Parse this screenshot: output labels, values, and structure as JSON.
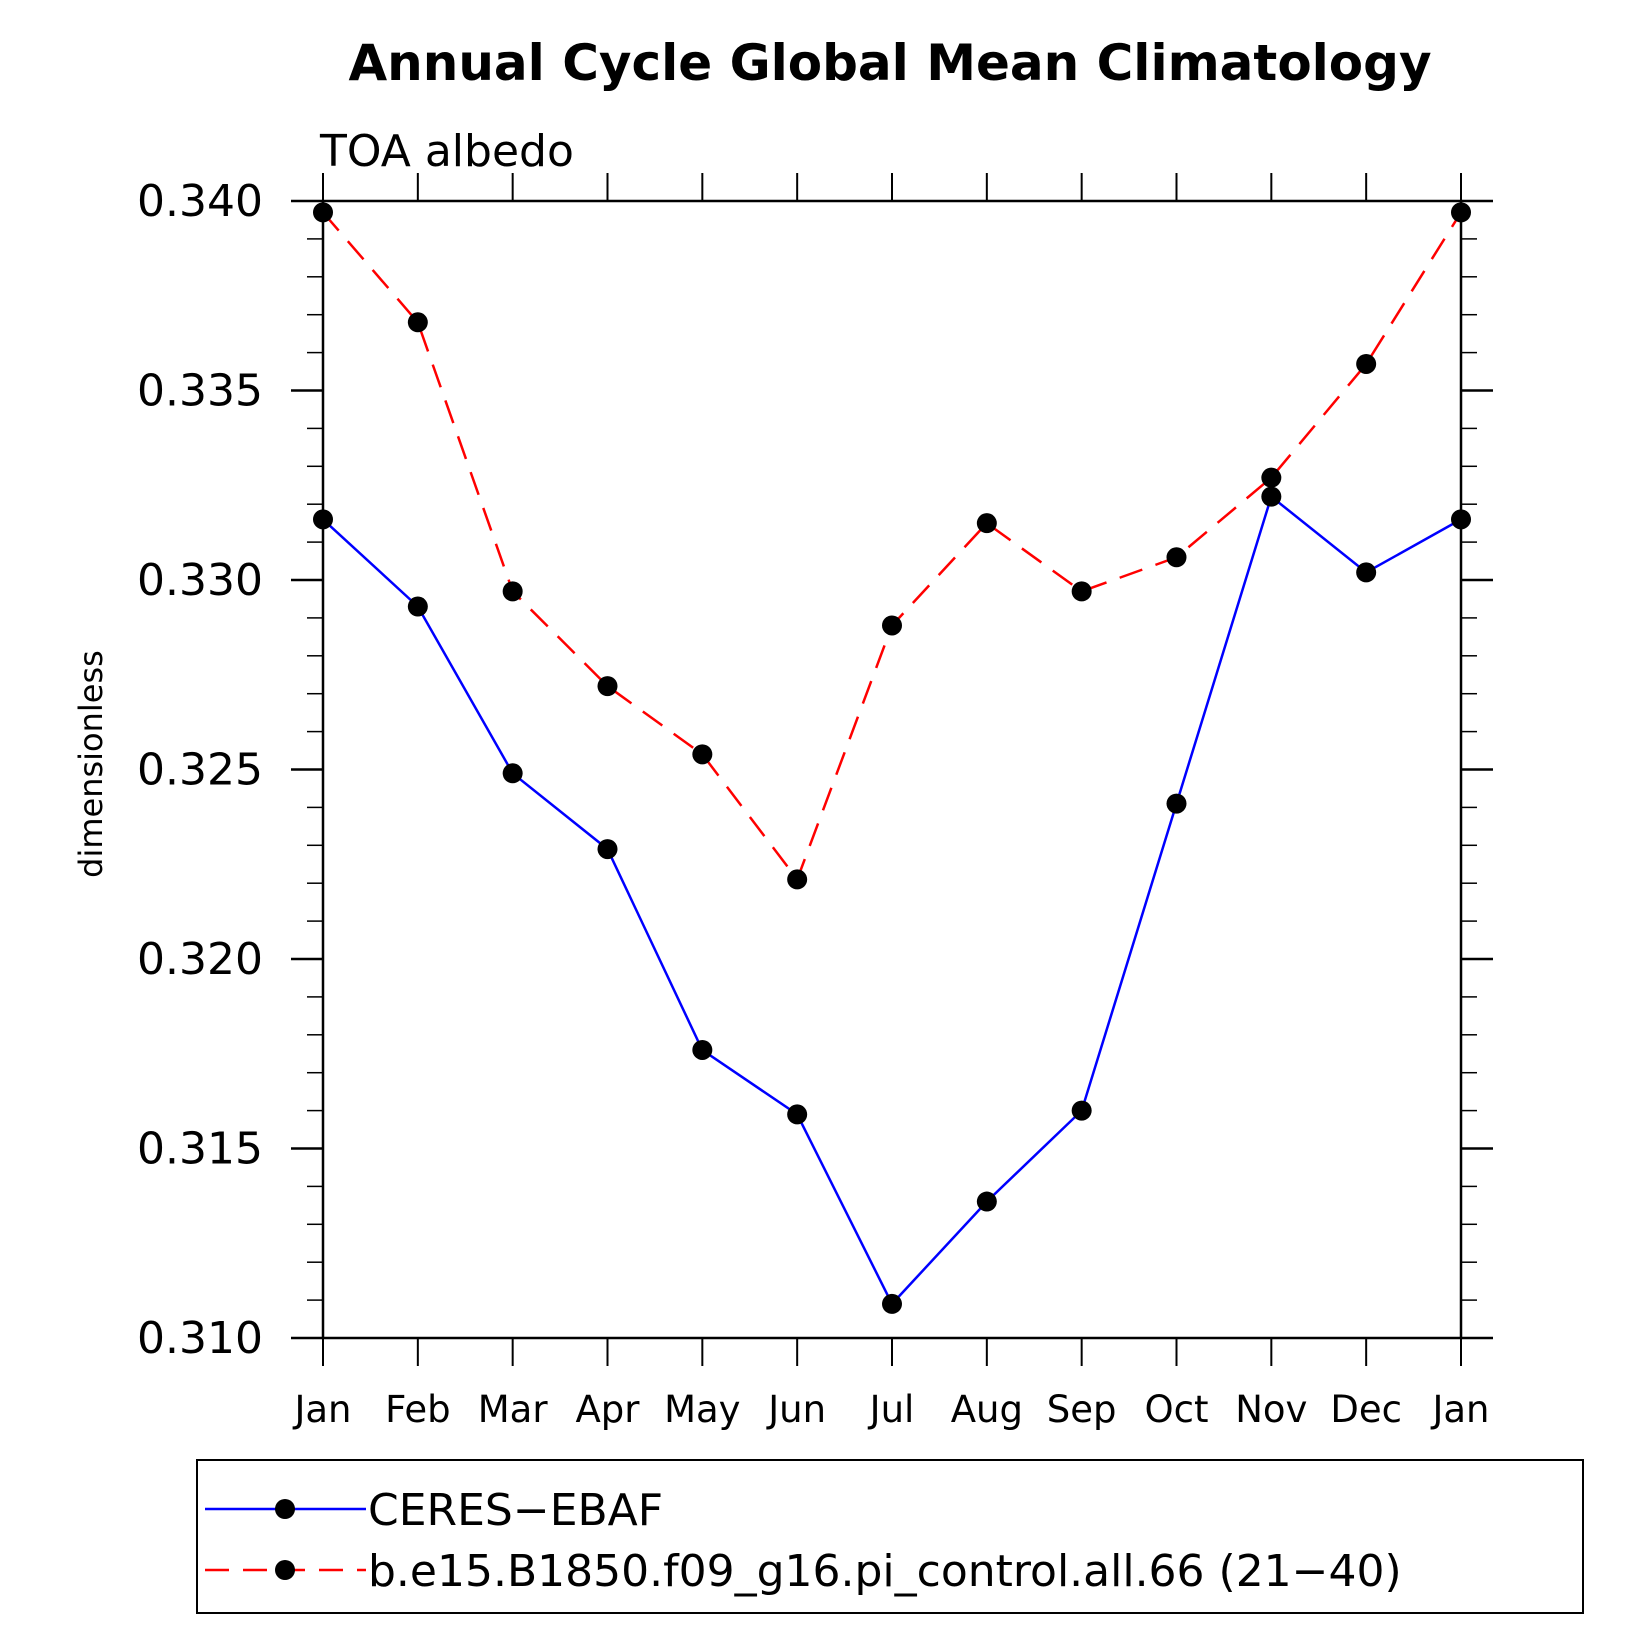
{
  "chart_data": {
    "type": "line",
    "title": "Annual Cycle Global Mean Climatology",
    "subtitle": "TOA albedo",
    "xlabel": "",
    "ylabel": "dimensionless",
    "categories": [
      "Jan",
      "Feb",
      "Mar",
      "Apr",
      "May",
      "Jun",
      "Jul",
      "Aug",
      "Sep",
      "Oct",
      "Nov",
      "Dec",
      "Jan"
    ],
    "ylim": [
      0.31,
      0.34
    ],
    "yticks": [
      "0.310",
      "0.315",
      "0.320",
      "0.325",
      "0.330",
      "0.335",
      "0.340"
    ],
    "ytick_values": [
      0.31,
      0.315,
      0.32,
      0.325,
      0.33,
      0.335,
      0.34
    ],
    "grid": false,
    "legend_position": "bottom",
    "series": [
      {
        "name": "CERES−EBAF",
        "color": "#0000ff",
        "dash": "solid",
        "marker": "filled-circle",
        "values": [
          0.3316,
          0.3293,
          0.3249,
          0.3229,
          0.3176,
          0.3159,
          0.3109,
          0.3136,
          0.316,
          0.3241,
          0.3322,
          0.3302,
          0.3316
        ]
      },
      {
        "name": "b.e15.B1850.f09_g16.pi_control.all.66 (21−40)",
        "color": "#ff0000",
        "dash": "dashed",
        "marker": "filled-circle",
        "values": [
          0.3397,
          0.3368,
          0.3297,
          0.3272,
          0.3254,
          0.3221,
          0.3288,
          0.3315,
          0.3297,
          0.3306,
          0.3327,
          0.3357,
          0.3397
        ]
      }
    ]
  }
}
